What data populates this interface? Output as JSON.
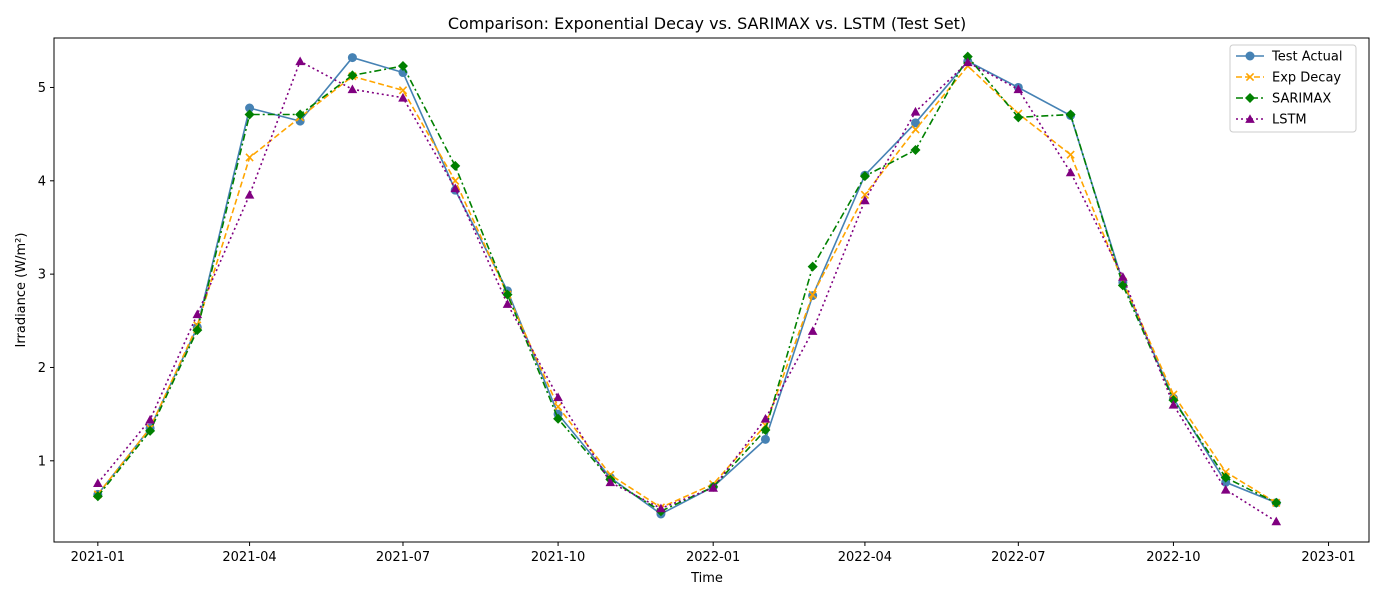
{
  "chart_data": {
    "type": "line",
    "title": "Comparison: Exponential Decay vs. SARIMAX vs. LSTM (Test Set)",
    "xlabel": "Time",
    "ylabel": "Irradiance (W/m²)",
    "x": [
      "2021-01",
      "2021-02",
      "2021-03",
      "2021-04",
      "2021-05",
      "2021-06",
      "2021-07",
      "2021-08",
      "2021-09",
      "2021-10",
      "2021-11",
      "2021-12",
      "2022-01",
      "2022-02",
      "2022-03",
      "2022-04",
      "2022-05",
      "2022-06",
      "2022-07",
      "2022-08",
      "2022-09",
      "2022-10",
      "2022-11",
      "2022-12"
    ],
    "xlim": [
      "2020-12-06",
      "2023-01-25"
    ],
    "ylim": [
      0.13,
      5.53
    ],
    "x_ticks": [
      "2021-01",
      "2021-04",
      "2021-07",
      "2021-10",
      "2022-01",
      "2022-04",
      "2022-07",
      "2022-10",
      "2023-01"
    ],
    "y_ticks": [
      1,
      2,
      3,
      4,
      5
    ],
    "legend_position": "top-right",
    "grid": false,
    "series": [
      {
        "name": "Test Actual",
        "color": "#4682b4",
        "linestyle": "solid",
        "marker": "circle",
        "values": [
          0.64,
          1.35,
          2.43,
          4.78,
          4.64,
          5.32,
          5.16,
          3.9,
          2.82,
          1.5,
          0.82,
          0.43,
          0.72,
          1.23,
          2.77,
          4.06,
          4.62,
          5.28,
          5.0,
          4.7,
          2.91,
          1.67,
          0.77,
          0.55
        ]
      },
      {
        "name": "Exp Decay",
        "color": "#ffa500",
        "linestyle": "dashed",
        "marker": "x",
        "values": [
          0.64,
          1.35,
          2.45,
          4.25,
          4.68,
          5.12,
          4.97,
          4.0,
          2.78,
          1.58,
          0.85,
          0.5,
          0.75,
          1.38,
          2.78,
          3.85,
          4.55,
          5.23,
          4.72,
          4.28,
          2.92,
          1.71,
          0.88,
          0.55
        ]
      },
      {
        "name": "SARIMAX",
        "color": "#008000",
        "linestyle": "dashdot",
        "marker": "diamond",
        "values": [
          0.62,
          1.32,
          2.4,
          4.71,
          4.71,
          5.13,
          5.23,
          4.16,
          2.78,
          1.45,
          0.8,
          0.46,
          0.72,
          1.33,
          3.08,
          4.05,
          4.33,
          5.33,
          4.68,
          4.71,
          2.88,
          1.65,
          0.82,
          0.55
        ]
      },
      {
        "name": "LSTM",
        "color": "#800080",
        "linestyle": "dotted",
        "marker": "triangle",
        "values": [
          0.76,
          1.44,
          2.57,
          3.85,
          5.28,
          4.98,
          4.89,
          3.92,
          2.68,
          1.68,
          0.77,
          0.49,
          0.71,
          1.45,
          2.39,
          3.79,
          4.74,
          5.27,
          4.98,
          4.09,
          2.97,
          1.6,
          0.69,
          0.35
        ]
      }
    ]
  }
}
